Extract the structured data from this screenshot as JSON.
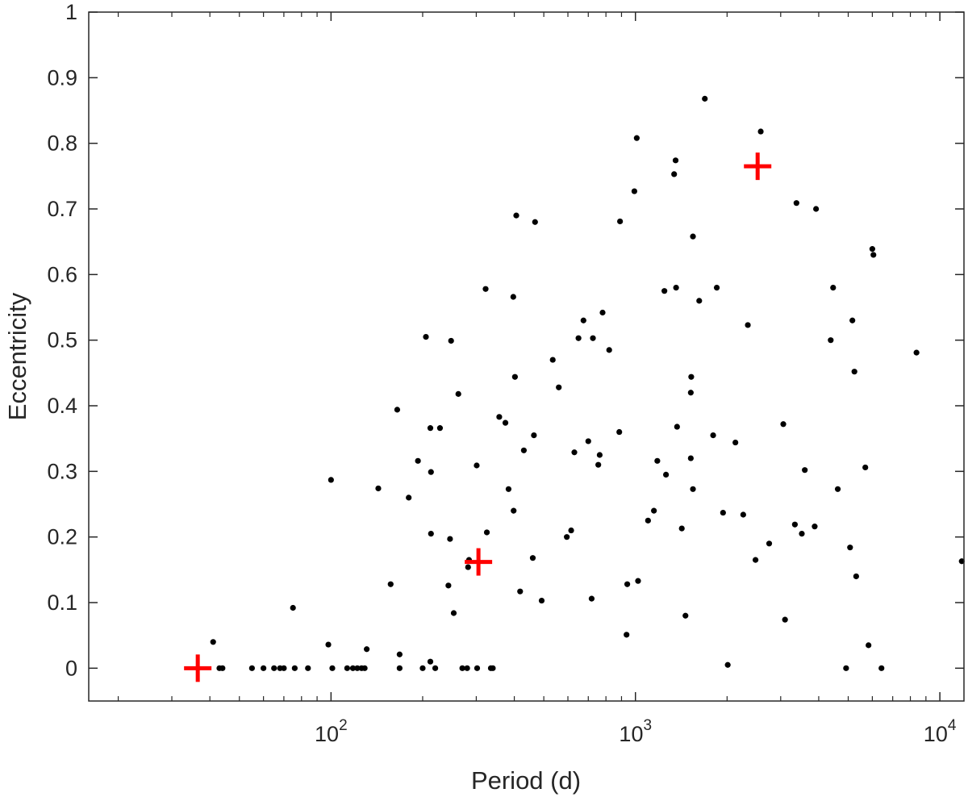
{
  "chart_data": {
    "type": "scatter",
    "xlabel": "Period (d)",
    "ylabel": "Eccentricity",
    "xscale": "log",
    "xlim": [
      16,
      12000
    ],
    "ylim": [
      -0.05,
      1
    ],
    "grid": false,
    "x_ticks": [
      {
        "value": 100,
        "base": "10",
        "exp": "2"
      },
      {
        "value": 1000,
        "base": "10",
        "exp": "3"
      },
      {
        "value": 10000,
        "base": "10",
        "exp": "4"
      }
    ],
    "y_ticks": [
      {
        "value": 0,
        "label": "0"
      },
      {
        "value": 0.1,
        "label": "0.1"
      },
      {
        "value": 0.2,
        "label": "0.2"
      },
      {
        "value": 0.3,
        "label": "0.3"
      },
      {
        "value": 0.4,
        "label": "0.4"
      },
      {
        "value": 0.5,
        "label": "0.5"
      },
      {
        "value": 0.6,
        "label": "0.6"
      },
      {
        "value": 0.7,
        "label": "0.7"
      },
      {
        "value": 0.8,
        "label": "0.8"
      },
      {
        "value": 0.9,
        "label": "0.9"
      },
      {
        "value": 1,
        "label": "1"
      }
    ],
    "colors": {
      "points": "#000000",
      "highlight": "#ff0000",
      "axis": "#262626"
    },
    "series": [
      {
        "marker": "dot",
        "color": "#000000",
        "points": [
          [
            41,
            0.04
          ],
          [
            43,
            0
          ],
          [
            44,
            0
          ],
          [
            55,
            0
          ],
          [
            60,
            0
          ],
          [
            65,
            0
          ],
          [
            68,
            0
          ],
          [
            70,
            0
          ],
          [
            75,
            0.092
          ],
          [
            76,
            0
          ],
          [
            84,
            0
          ],
          [
            98,
            0.036
          ],
          [
            100,
            0.287
          ],
          [
            101,
            0
          ],
          [
            113,
            0
          ],
          [
            118,
            0
          ],
          [
            122,
            0
          ],
          [
            126,
            0
          ],
          [
            129,
            0
          ],
          [
            131,
            0.029
          ],
          [
            143,
            0.274
          ],
          [
            157,
            0.128
          ],
          [
            165,
            0.394
          ],
          [
            168,
            0.021
          ],
          [
            168,
            0
          ],
          [
            180,
            0.26
          ],
          [
            193,
            0.316
          ],
          [
            200,
            0
          ],
          [
            205,
            0.505
          ],
          [
            212,
            0.366
          ],
          [
            213,
            0.299
          ],
          [
            213,
            0.205
          ],
          [
            212,
            0.01
          ],
          [
            220,
            0
          ],
          [
            228,
            0.366
          ],
          [
            243,
            0.126
          ],
          [
            246,
            0.197
          ],
          [
            248,
            0.499
          ],
          [
            253,
            0.084
          ],
          [
            262,
            0.418
          ],
          [
            270,
            0
          ],
          [
            280,
            0
          ],
          [
            282,
            0.154
          ],
          [
            284,
            0.165
          ],
          [
            301,
            0.309
          ],
          [
            302,
            0
          ],
          [
            322,
            0.578
          ],
          [
            325,
            0.207
          ],
          [
            335,
            0
          ],
          [
            340,
            0
          ],
          [
            357,
            0.383
          ],
          [
            374,
            0.374
          ],
          [
            383,
            0.273
          ],
          [
            397,
            0.566
          ],
          [
            398,
            0.24
          ],
          [
            402,
            0.444
          ],
          [
            406,
            0.69
          ],
          [
            418,
            0.117
          ],
          [
            430,
            0.332
          ],
          [
            460,
            0.168
          ],
          [
            464,
            0.355
          ],
          [
            468,
            0.68
          ],
          [
            492,
            0.103
          ],
          [
            535,
            0.47
          ],
          [
            560,
            0.428
          ],
          [
            595,
            0.2
          ],
          [
            615,
            0.21
          ],
          [
            630,
            0.329
          ],
          [
            650,
            0.503
          ],
          [
            675,
            0.53
          ],
          [
            700,
            0.346
          ],
          [
            718,
            0.106
          ],
          [
            725,
            0.503
          ],
          [
            755,
            0.31
          ],
          [
            763,
            0.325
          ],
          [
            780,
            0.542
          ],
          [
            820,
            0.485
          ],
          [
            885,
            0.36
          ],
          [
            890,
            0.681
          ],
          [
            935,
            0.051
          ],
          [
            940,
            0.128
          ],
          [
            992,
            0.727
          ],
          [
            1010,
            0.808
          ],
          [
            1020,
            0.133
          ],
          [
            1100,
            0.225
          ],
          [
            1150,
            0.24
          ],
          [
            1180,
            0.316
          ],
          [
            1245,
            0.575
          ],
          [
            1260,
            0.295
          ],
          [
            1340,
            0.753
          ],
          [
            1355,
            0.774
          ],
          [
            1360,
            0.58
          ],
          [
            1370,
            0.368
          ],
          [
            1420,
            0.213
          ],
          [
            1460,
            0.08
          ],
          [
            1520,
            0.32
          ],
          [
            1525,
            0.444
          ],
          [
            1520,
            0.42
          ],
          [
            1545,
            0.658
          ],
          [
            1545,
            0.273
          ],
          [
            1620,
            0.56
          ],
          [
            1690,
            0.868
          ],
          [
            1800,
            0.355
          ],
          [
            1850,
            0.58
          ],
          [
            1940,
            0.237
          ],
          [
            2010,
            0.005
          ],
          [
            2130,
            0.344
          ],
          [
            2260,
            0.234
          ],
          [
            2340,
            0.523
          ],
          [
            2480,
            0.165
          ],
          [
            2580,
            0.818
          ],
          [
            2750,
            0.19
          ],
          [
            3060,
            0.372
          ],
          [
            3100,
            0.074
          ],
          [
            3340,
            0.219
          ],
          [
            3380,
            0.709
          ],
          [
            3520,
            0.205
          ],
          [
            3600,
            0.302
          ],
          [
            3880,
            0.216
          ],
          [
            3920,
            0.7
          ],
          [
            4380,
            0.5
          ],
          [
            4460,
            0.58
          ],
          [
            4620,
            0.273
          ],
          [
            4920,
            0
          ],
          [
            5070,
            0.184
          ],
          [
            5160,
            0.53
          ],
          [
            5240,
            0.452
          ],
          [
            5310,
            0.14
          ],
          [
            5690,
            0.306
          ],
          [
            5830,
            0.035
          ],
          [
            6000,
            0.639
          ],
          [
            6050,
            0.63
          ],
          [
            6430,
            0
          ],
          [
            8380,
            0.481
          ],
          [
            11800,
            0.163
          ]
        ]
      },
      {
        "marker": "plus",
        "color": "#ff0000",
        "points": [
          [
            36.5,
            0
          ],
          [
            305,
            0.162
          ],
          [
            2520,
            0.765
          ]
        ]
      }
    ]
  }
}
